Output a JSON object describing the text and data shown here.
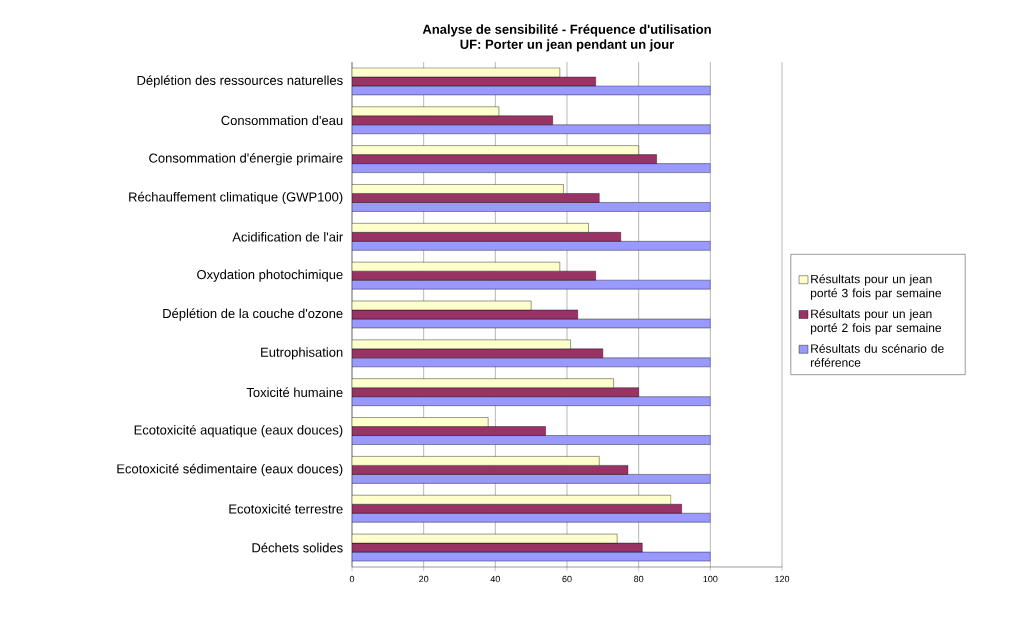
{
  "chart_data": {
    "type": "bar",
    "orientation": "horizontal",
    "title": "Analyse de sensibilité - Fréquence d'utilisation",
    "subtitle": "UF: Porter un jean pendant un jour",
    "categories": [
      "Déplétion des ressources naturelles",
      "Consommation d'eau",
      "Consommation d'énergie primaire",
      "Réchauffement climatique (GWP100)",
      "Acidification de l'air",
      "Oxydation photochimique",
      "Déplétion de la couche d'ozone",
      "Eutrophisation",
      "Toxicité humaine",
      "Ecotoxicité aquatique (eaux douces)",
      "Ecotoxicité sédimentaire (eaux douces)",
      "Ecotoxicité terrestre",
      "Déchets solides"
    ],
    "series": [
      {
        "name": "Résultats pour un jean porté 3 fois par semaine",
        "color": "#ffffcc",
        "values": [
          58,
          41,
          80,
          59,
          66,
          58,
          50,
          61,
          73,
          38,
          69,
          89,
          74
        ]
      },
      {
        "name": "Résultats pour un jean porté 2 fois par semaine",
        "color": "#993366",
        "values": [
          68,
          56,
          85,
          69,
          75,
          68,
          63,
          70,
          80,
          54,
          77,
          92,
          81
        ]
      },
      {
        "name": "Résultats du scénario de référence",
        "color": "#9999ff",
        "values": [
          100,
          100,
          100,
          100,
          100,
          100,
          100,
          100,
          100,
          100,
          100,
          100,
          100
        ]
      }
    ],
    "xlim": [
      0,
      120
    ],
    "xticks": [
      0,
      20,
      40,
      60,
      80,
      100,
      120
    ],
    "grid": "x",
    "legend": "right"
  }
}
